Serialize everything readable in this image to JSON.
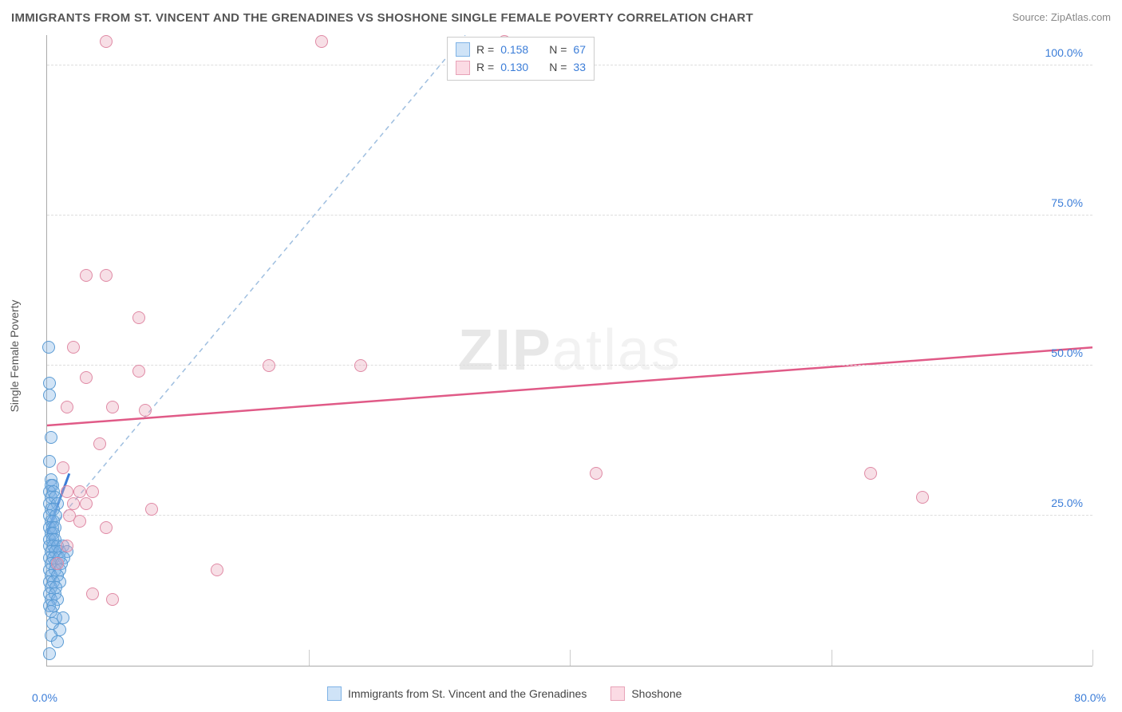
{
  "chart": {
    "type": "scatter",
    "title": "IMMIGRANTS FROM ST. VINCENT AND THE GRENADINES VS SHOSHONE SINGLE FEMALE POVERTY CORRELATION CHART",
    "source_label": "Source: ZipAtlas.com",
    "watermark": {
      "bold": "ZIP",
      "rest": "atlas"
    },
    "y_axis_label": "Single Female Poverty",
    "xlim": [
      0,
      80
    ],
    "ylim": [
      0,
      105
    ],
    "x_ticks": [
      0,
      20,
      40,
      60,
      80
    ],
    "y_ticks": [
      25,
      50,
      75,
      100
    ],
    "x_tick_labels_shown": {
      "left": "0.0%",
      "right": "80.0%"
    },
    "y_tick_labels": [
      "25.0%",
      "50.0%",
      "75.0%",
      "100.0%"
    ],
    "grid_color": "#dddddd",
    "axis_color": "#aaaaaa",
    "background_color": "#ffffff",
    "tick_label_color": "#3b7dd8",
    "title_color": "#555555",
    "title_fontsize": 15,
    "label_fontsize": 14,
    "legend_top": {
      "rows": [
        {
          "swatch_fill": "#cfe3f7",
          "swatch_border": "#7fb3e6",
          "r_label": "R =",
          "r_value": "0.158",
          "n_label": "N =",
          "n_value": "67"
        },
        {
          "swatch_fill": "#fbdbe4",
          "swatch_border": "#e8a3b8",
          "r_label": "R =",
          "r_value": "0.130",
          "n_label": "N =",
          "n_value": "33"
        }
      ]
    },
    "series": [
      {
        "id": "svg_imm",
        "label": "Immigrants from St. Vincent and the Grenadines",
        "marker_fill": "rgba(127,179,230,0.35)",
        "marker_stroke": "#5a9bd4",
        "marker_radius": 7,
        "trend": {
          "type": "dashed",
          "color": "#9fbfe0",
          "width": 1.5,
          "x1": 0,
          "y1": 22,
          "x2": 32,
          "y2": 105
        },
        "solid_segment": {
          "color": "#3b7dd8",
          "width": 3,
          "x1": 0,
          "y1": 22,
          "x2": 1.7,
          "y2": 32
        },
        "points": [
          {
            "x": 0.1,
            "y": 53
          },
          {
            "x": 0.2,
            "y": 47
          },
          {
            "x": 0.2,
            "y": 45
          },
          {
            "x": 0.3,
            "y": 38
          },
          {
            "x": 0.2,
            "y": 34
          },
          {
            "x": 0.3,
            "y": 31
          },
          {
            "x": 0.3,
            "y": 30
          },
          {
            "x": 0.4,
            "y": 30
          },
          {
            "x": 0.2,
            "y": 29
          },
          {
            "x": 0.5,
            "y": 29
          },
          {
            "x": 0.3,
            "y": 28
          },
          {
            "x": 0.6,
            "y": 28
          },
          {
            "x": 0.2,
            "y": 27
          },
          {
            "x": 0.8,
            "y": 27
          },
          {
            "x": 0.3,
            "y": 26
          },
          {
            "x": 0.5,
            "y": 26
          },
          {
            "x": 0.2,
            "y": 25
          },
          {
            "x": 0.7,
            "y": 25
          },
          {
            "x": 0.3,
            "y": 24
          },
          {
            "x": 0.5,
            "y": 24
          },
          {
            "x": 0.2,
            "y": 23
          },
          {
            "x": 0.4,
            "y": 23
          },
          {
            "x": 0.6,
            "y": 23
          },
          {
            "x": 0.3,
            "y": 22
          },
          {
            "x": 0.5,
            "y": 22
          },
          {
            "x": 0.2,
            "y": 21
          },
          {
            "x": 0.4,
            "y": 21
          },
          {
            "x": 0.6,
            "y": 21
          },
          {
            "x": 0.2,
            "y": 20
          },
          {
            "x": 0.5,
            "y": 20
          },
          {
            "x": 0.8,
            "y": 20
          },
          {
            "x": 1.2,
            "y": 20
          },
          {
            "x": 0.3,
            "y": 19
          },
          {
            "x": 0.6,
            "y": 19
          },
          {
            "x": 1.0,
            "y": 19
          },
          {
            "x": 1.5,
            "y": 19
          },
          {
            "x": 0.2,
            "y": 18
          },
          {
            "x": 0.5,
            "y": 18
          },
          {
            "x": 0.9,
            "y": 18
          },
          {
            "x": 1.3,
            "y": 18
          },
          {
            "x": 0.3,
            "y": 17
          },
          {
            "x": 0.7,
            "y": 17
          },
          {
            "x": 1.1,
            "y": 17
          },
          {
            "x": 0.2,
            "y": 16
          },
          {
            "x": 0.6,
            "y": 16
          },
          {
            "x": 1.0,
            "y": 16
          },
          {
            "x": 0.3,
            "y": 15
          },
          {
            "x": 0.8,
            "y": 15
          },
          {
            "x": 0.2,
            "y": 14
          },
          {
            "x": 0.5,
            "y": 14
          },
          {
            "x": 1.0,
            "y": 14
          },
          {
            "x": 0.3,
            "y": 13
          },
          {
            "x": 0.7,
            "y": 13
          },
          {
            "x": 0.2,
            "y": 12
          },
          {
            "x": 0.6,
            "y": 12
          },
          {
            "x": 0.3,
            "y": 11
          },
          {
            "x": 0.8,
            "y": 11
          },
          {
            "x": 0.2,
            "y": 10
          },
          {
            "x": 0.5,
            "y": 10
          },
          {
            "x": 0.3,
            "y": 9
          },
          {
            "x": 0.7,
            "y": 8
          },
          {
            "x": 1.2,
            "y": 8
          },
          {
            "x": 0.4,
            "y": 7
          },
          {
            "x": 1.0,
            "y": 6
          },
          {
            "x": 0.3,
            "y": 5
          },
          {
            "x": 0.8,
            "y": 4
          },
          {
            "x": 0.2,
            "y": 2
          }
        ]
      },
      {
        "id": "shoshone",
        "label": "Shoshone",
        "marker_fill": "rgba(232,163,184,0.35)",
        "marker_stroke": "#e08aa5",
        "marker_radius": 7,
        "trend": {
          "type": "solid",
          "color": "#e05a87",
          "width": 2.5,
          "x1": 0,
          "y1": 40,
          "x2": 80,
          "y2": 53
        },
        "points": [
          {
            "x": 4.5,
            "y": 104
          },
          {
            "x": 21,
            "y": 104
          },
          {
            "x": 35,
            "y": 104
          },
          {
            "x": 3,
            "y": 65
          },
          {
            "x": 4.5,
            "y": 65
          },
          {
            "x": 7,
            "y": 58
          },
          {
            "x": 2,
            "y": 53
          },
          {
            "x": 3,
            "y": 48
          },
          {
            "x": 17,
            "y": 50
          },
          {
            "x": 24,
            "y": 50
          },
          {
            "x": 7,
            "y": 49
          },
          {
            "x": 1.5,
            "y": 43
          },
          {
            "x": 5,
            "y": 43
          },
          {
            "x": 7.5,
            "y": 42.5
          },
          {
            "x": 4,
            "y": 37
          },
          {
            "x": 1.2,
            "y": 33
          },
          {
            "x": 42,
            "y": 32
          },
          {
            "x": 63,
            "y": 32
          },
          {
            "x": 2.5,
            "y": 29
          },
          {
            "x": 3.5,
            "y": 29
          },
          {
            "x": 1.5,
            "y": 29
          },
          {
            "x": 2,
            "y": 27
          },
          {
            "x": 3,
            "y": 27
          },
          {
            "x": 8,
            "y": 26
          },
          {
            "x": 67,
            "y": 28
          },
          {
            "x": 4.5,
            "y": 23
          },
          {
            "x": 1.7,
            "y": 25
          },
          {
            "x": 2.5,
            "y": 24
          },
          {
            "x": 1.5,
            "y": 20
          },
          {
            "x": 13,
            "y": 16
          },
          {
            "x": 3.5,
            "y": 12
          },
          {
            "x": 5,
            "y": 11
          },
          {
            "x": 0.8,
            "y": 17
          }
        ]
      }
    ],
    "legend_bottom": {
      "items": [
        {
          "swatch_fill": "#cfe3f7",
          "swatch_border": "#7fb3e6",
          "label": "Immigrants from St. Vincent and the Grenadines"
        },
        {
          "swatch_fill": "#fbdbe4",
          "swatch_border": "#e8a3b8",
          "label": "Shoshone"
        }
      ]
    }
  }
}
